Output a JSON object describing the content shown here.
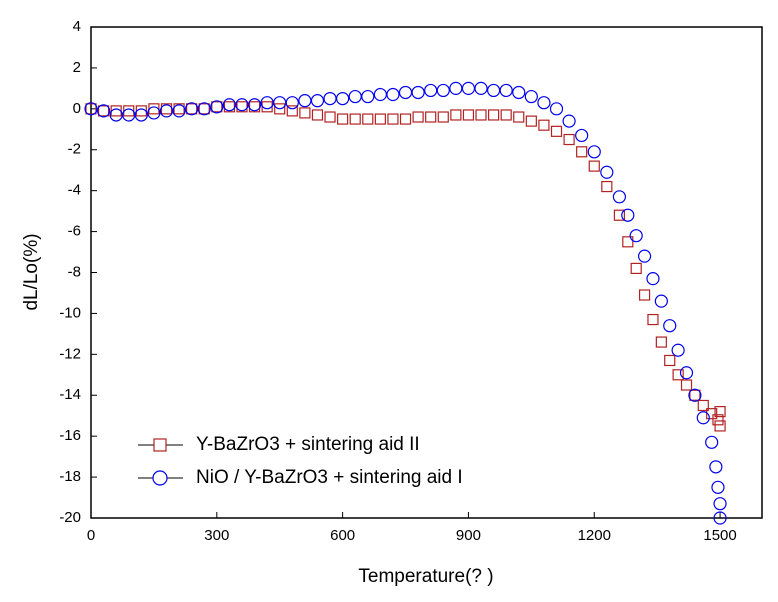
{
  "chart_data": {
    "type": "scatter",
    "xlabel": "Temperature(? )",
    "ylabel": "dL/Lo(%)",
    "xlim": [
      0,
      1600
    ],
    "ylim": [
      -20,
      4
    ],
    "xticks": [
      0,
      300,
      600,
      900,
      1200,
      1500
    ],
    "yticks": [
      -20,
      -18,
      -16,
      -14,
      -12,
      -10,
      -8,
      -6,
      -4,
      -2,
      0,
      2,
      4
    ],
    "legend": "lower left",
    "series": [
      {
        "name": "Y-BaZrO3 + sintering aid II",
        "color": "#b22222",
        "marker": "square",
        "x": [
          0,
          30,
          60,
          90,
          120,
          150,
          180,
          210,
          240,
          270,
          300,
          330,
          360,
          390,
          420,
          450,
          480,
          510,
          540,
          570,
          600,
          630,
          660,
          690,
          720,
          750,
          780,
          810,
          840,
          870,
          900,
          930,
          960,
          990,
          1020,
          1050,
          1080,
          1110,
          1140,
          1170,
          1200,
          1230,
          1260,
          1280,
          1300,
          1320,
          1340,
          1360,
          1380,
          1400,
          1420,
          1440,
          1460,
          1480,
          1495,
          1500,
          1500
        ],
        "values": [
          0,
          -0.1,
          -0.1,
          -0.1,
          -0.1,
          0,
          0,
          0,
          0,
          0,
          0.1,
          0.1,
          0.1,
          0.1,
          0.1,
          0,
          -0.1,
          -0.2,
          -0.3,
          -0.4,
          -0.5,
          -0.5,
          -0.5,
          -0.5,
          -0.5,
          -0.5,
          -0.4,
          -0.4,
          -0.4,
          -0.3,
          -0.3,
          -0.3,
          -0.3,
          -0.3,
          -0.4,
          -0.6,
          -0.8,
          -1.1,
          -1.5,
          -2.1,
          -2.8,
          -3.8,
          -5.2,
          -6.5,
          -7.8,
          -9.1,
          -10.3,
          -11.4,
          -12.3,
          -13,
          -13.5,
          -14,
          -14.5,
          -14.9,
          -15.2,
          -15.5,
          -14.8
        ]
      },
      {
        "name": "NiO / Y-BaZrO3 + sintering aid I",
        "color": "#0000ee",
        "marker": "circle",
        "x": [
          0,
          30,
          60,
          90,
          120,
          150,
          180,
          210,
          240,
          270,
          300,
          330,
          360,
          390,
          420,
          450,
          480,
          510,
          540,
          570,
          600,
          630,
          660,
          690,
          720,
          750,
          780,
          810,
          840,
          870,
          900,
          930,
          960,
          990,
          1020,
          1050,
          1080,
          1110,
          1140,
          1170,
          1200,
          1230,
          1260,
          1280,
          1300,
          1320,
          1340,
          1360,
          1380,
          1400,
          1420,
          1440,
          1460,
          1480,
          1490,
          1495,
          1500,
          1500
        ],
        "values": [
          0,
          -0.1,
          -0.3,
          -0.3,
          -0.3,
          -0.2,
          -0.1,
          -0.1,
          0,
          0,
          0.1,
          0.2,
          0.2,
          0.2,
          0.3,
          0.3,
          0.3,
          0.4,
          0.4,
          0.5,
          0.5,
          0.6,
          0.6,
          0.7,
          0.7,
          0.8,
          0.8,
          0.9,
          0.9,
          1.0,
          1.0,
          1.0,
          0.9,
          0.9,
          0.8,
          0.6,
          0.3,
          0,
          -0.6,
          -1.3,
          -2.1,
          -3.1,
          -4.3,
          -5.2,
          -6.2,
          -7.2,
          -8.3,
          -9.4,
          -10.6,
          -11.8,
          -12.9,
          -14,
          -15.1,
          -16.3,
          -17.5,
          -18.5,
          -19.3,
          -20
        ]
      }
    ]
  }
}
